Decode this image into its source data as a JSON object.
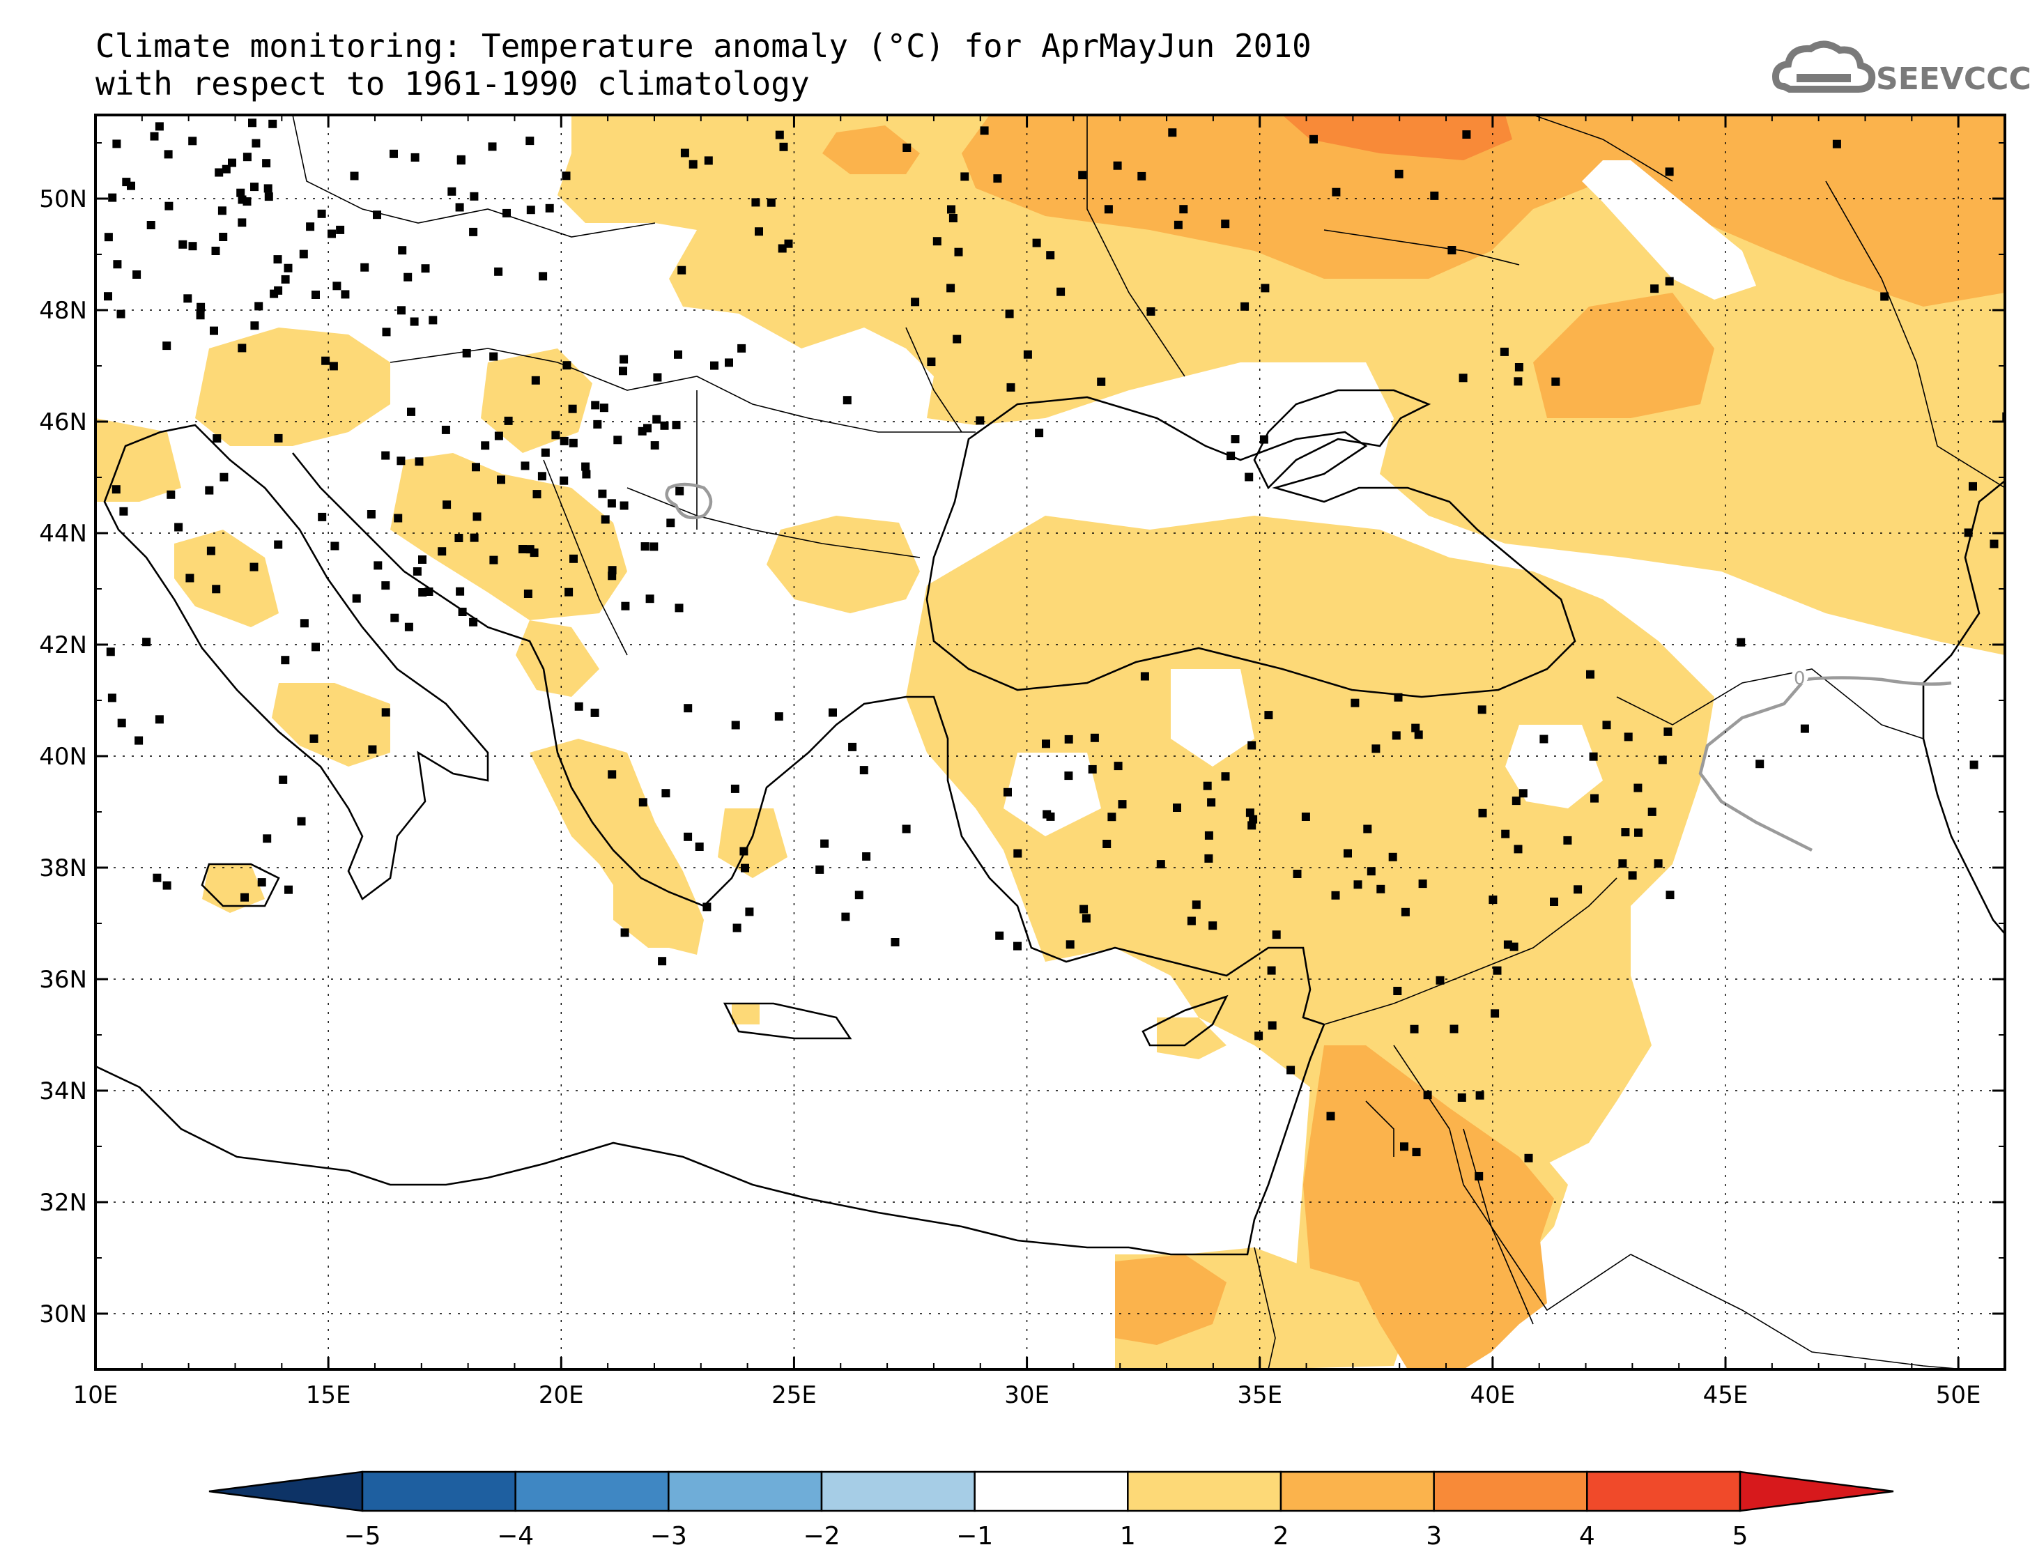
{
  "title": {
    "line1": "Climate monitoring: Temperature anomaly (°C) for AprMayJun 2010",
    "line2": "with respect to 1961-1990 climatology"
  },
  "logo": {
    "text": "SEEVCCC",
    "icon": "cloud-icon"
  },
  "map": {
    "lon_range": [
      10,
      51
    ],
    "lat_range": [
      29,
      51.5
    ],
    "x_ticks": [
      "10E",
      "15E",
      "20E",
      "25E",
      "30E",
      "35E",
      "40E",
      "45E",
      "50E"
    ],
    "y_ticks": [
      "30N",
      "32N",
      "34N",
      "36N",
      "38N",
      "40N",
      "42N",
      "44N",
      "46N",
      "48N",
      "50N"
    ],
    "contour_label": "0"
  },
  "colorbar": {
    "labels": [
      "-5",
      "-4",
      "-3",
      "-2",
      "-1",
      "1",
      "2",
      "3",
      "4",
      "5"
    ],
    "colors": {
      "lt-5": "#0d3366",
      "-5_-4": "#1e5fa0",
      "-4_-3": "#3f87c3",
      "-3_-2": "#6fadd8",
      "-2_-1": "#a6cde6",
      "-1_1": "#ffffff",
      "1_2": "#fdd977",
      "2_3": "#fbb34c",
      "3_4": "#f88a38",
      "4_5": "#f04a2a",
      "gt5": "#d7191c"
    }
  }
}
